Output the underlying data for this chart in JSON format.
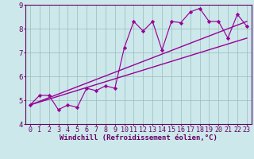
{
  "xlabel": "Windchill (Refroidissement éolien,°C)",
  "xlim": [
    -0.5,
    23.5
  ],
  "ylim": [
    4,
    9
  ],
  "xticks": [
    0,
    1,
    2,
    3,
    4,
    5,
    6,
    7,
    8,
    9,
    10,
    11,
    12,
    13,
    14,
    15,
    16,
    17,
    18,
    19,
    20,
    21,
    22,
    23
  ],
  "yticks": [
    4,
    5,
    6,
    7,
    8,
    9
  ],
  "data_x": [
    0,
    1,
    2,
    3,
    4,
    5,
    6,
    7,
    8,
    9,
    10,
    11,
    12,
    13,
    14,
    15,
    16,
    17,
    18,
    19,
    20,
    21,
    22,
    23
  ],
  "data_y": [
    4.8,
    5.2,
    5.2,
    4.6,
    4.8,
    4.7,
    5.5,
    5.4,
    5.6,
    5.5,
    7.2,
    8.3,
    7.9,
    8.3,
    7.1,
    8.3,
    8.25,
    8.7,
    8.85,
    8.3,
    8.3,
    7.6,
    8.6,
    8.1
  ],
  "trend_x": [
    0,
    23
  ],
  "trend1_y": [
    4.8,
    8.3
  ],
  "trend2_y": [
    4.8,
    7.6
  ],
  "line_color": "#990099",
  "bg_color": "#cce8ea",
  "grid_color": "#99bbbb",
  "tick_color": "#660066",
  "label_color": "#660066",
  "font_size_tick": 6,
  "font_size_label": 6.5
}
